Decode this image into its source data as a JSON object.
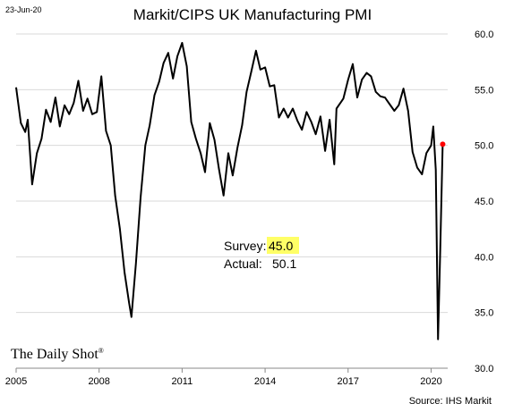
{
  "header": {
    "date": "23-Jun-20"
  },
  "footer": {
    "source": "Source: IHS Markit",
    "brand": "The Daily Shot",
    "brand_mark": "®"
  },
  "annotation": {
    "survey_label": "Survey:",
    "survey_value": "45.0",
    "actual_label": "Actual:",
    "actual_value": "50.1",
    "highlight_color": "#ffff66"
  },
  "chart_data": {
    "type": "line",
    "title": "Markit/CIPS UK Manufacturing PMI",
    "xlabel": "",
    "ylabel": "",
    "y_axis_side": "right",
    "ylim": [
      30,
      60
    ],
    "yticks": [
      "30.0",
      "35.0",
      "40.0",
      "45.0",
      "50.0",
      "55.0",
      "60.0"
    ],
    "xlim": [
      2005.0,
      2020.6
    ],
    "xticks": [
      "2005",
      "2008",
      "2011",
      "2014",
      "2017",
      "2020"
    ],
    "grid": "horizontal",
    "line_color": "#000000",
    "marker_color": "#ff0000",
    "series": [
      {
        "points": [
          [
            2005.0,
            55.2
          ],
          [
            2005.17,
            52.0
          ],
          [
            2005.33,
            51.2
          ],
          [
            2005.42,
            52.3
          ],
          [
            2005.58,
            46.5
          ],
          [
            2005.75,
            49.3
          ],
          [
            2005.92,
            50.6
          ],
          [
            2006.08,
            53.2
          ],
          [
            2006.25,
            52.1
          ],
          [
            2006.42,
            54.3
          ],
          [
            2006.58,
            51.7
          ],
          [
            2006.75,
            53.6
          ],
          [
            2006.92,
            52.8
          ],
          [
            2007.08,
            53.8
          ],
          [
            2007.25,
            55.8
          ],
          [
            2007.42,
            53.1
          ],
          [
            2007.58,
            54.2
          ],
          [
            2007.75,
            52.8
          ],
          [
            2007.92,
            53.0
          ],
          [
            2008.08,
            56.2
          ],
          [
            2008.25,
            51.3
          ],
          [
            2008.42,
            50.0
          ],
          [
            2008.58,
            45.5
          ],
          [
            2008.75,
            42.5
          ],
          [
            2008.92,
            38.6
          ],
          [
            2009.08,
            35.9
          ],
          [
            2009.17,
            34.6
          ],
          [
            2009.33,
            39.4
          ],
          [
            2009.5,
            45.3
          ],
          [
            2009.67,
            50.0
          ],
          [
            2009.83,
            51.8
          ],
          [
            2010.0,
            54.5
          ],
          [
            2010.17,
            55.7
          ],
          [
            2010.33,
            57.4
          ],
          [
            2010.5,
            58.3
          ],
          [
            2010.67,
            56.0
          ],
          [
            2010.83,
            58.0
          ],
          [
            2011.0,
            59.2
          ],
          [
            2011.17,
            57.1
          ],
          [
            2011.33,
            52.1
          ],
          [
            2011.5,
            50.6
          ],
          [
            2011.67,
            49.3
          ],
          [
            2011.83,
            47.6
          ],
          [
            2012.0,
            52.0
          ],
          [
            2012.17,
            50.5
          ],
          [
            2012.33,
            47.9
          ],
          [
            2012.5,
            45.5
          ],
          [
            2012.67,
            49.3
          ],
          [
            2012.83,
            47.3
          ],
          [
            2013.0,
            49.8
          ],
          [
            2013.17,
            51.8
          ],
          [
            2013.33,
            54.8
          ],
          [
            2013.5,
            56.6
          ],
          [
            2013.67,
            58.5
          ],
          [
            2013.83,
            56.8
          ],
          [
            2014.0,
            57.0
          ],
          [
            2014.17,
            55.3
          ],
          [
            2014.33,
            55.4
          ],
          [
            2014.5,
            52.5
          ],
          [
            2014.67,
            53.3
          ],
          [
            2014.83,
            52.5
          ],
          [
            2015.0,
            53.3
          ],
          [
            2015.17,
            52.2
          ],
          [
            2015.33,
            51.4
          ],
          [
            2015.5,
            53.0
          ],
          [
            2015.67,
            52.1
          ],
          [
            2015.83,
            51.0
          ],
          [
            2016.0,
            52.6
          ],
          [
            2016.17,
            49.5
          ],
          [
            2016.33,
            52.3
          ],
          [
            2016.5,
            48.3
          ],
          [
            2016.58,
            53.3
          ],
          [
            2016.83,
            54.2
          ],
          [
            2017.0,
            55.9
          ],
          [
            2017.17,
            57.3
          ],
          [
            2017.33,
            54.3
          ],
          [
            2017.5,
            55.9
          ],
          [
            2017.67,
            56.5
          ],
          [
            2017.83,
            56.2
          ],
          [
            2018.0,
            54.8
          ],
          [
            2018.17,
            54.4
          ],
          [
            2018.33,
            54.3
          ],
          [
            2018.5,
            53.7
          ],
          [
            2018.67,
            53.1
          ],
          [
            2018.83,
            53.6
          ],
          [
            2019.0,
            55.1
          ],
          [
            2019.17,
            53.1
          ],
          [
            2019.33,
            49.4
          ],
          [
            2019.5,
            48.0
          ],
          [
            2019.67,
            47.4
          ],
          [
            2019.83,
            49.3
          ],
          [
            2020.0,
            50.0
          ],
          [
            2020.08,
            51.7
          ],
          [
            2020.17,
            47.8
          ],
          [
            2020.25,
            32.6
          ],
          [
            2020.33,
            40.7
          ],
          [
            2020.42,
            50.1
          ]
        ],
        "last_value": 50.1
      }
    ]
  }
}
